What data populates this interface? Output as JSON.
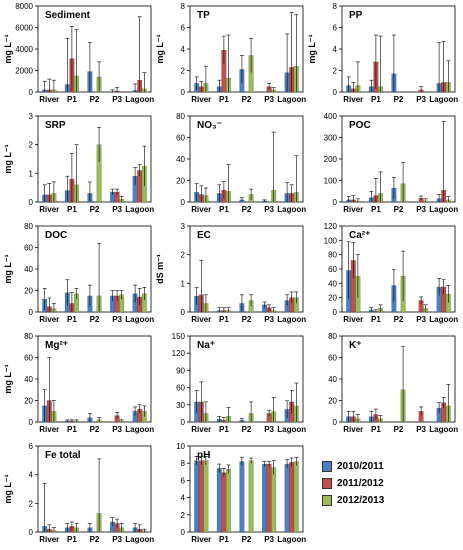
{
  "colors": {
    "s2010": "#4a7fc1",
    "s2011": "#c0504d",
    "s2012": "#9bbb59"
  },
  "legend": {
    "items": [
      "2010/2011",
      "2011/2012",
      "2012/2013"
    ]
  },
  "chart_data": [
    {
      "type": "bar",
      "title": "Sediment",
      "ylabel": "mg L⁻¹",
      "ylim": [
        0,
        8000
      ],
      "yticks": [
        0,
        2000,
        4000,
        6000,
        8000
      ],
      "categories": [
        "River",
        "P1",
        "P2",
        "P3",
        "Lagoon"
      ],
      "series": [
        {
          "name": "2010/2011",
          "values": [
            200,
            700,
            1900,
            50,
            150
          ],
          "err": [
            800,
            4300,
            2700,
            150,
            600
          ]
        },
        {
          "name": "2011/2012",
          "values": [
            200,
            3100,
            0,
            100,
            1100
          ],
          "err": [
            1000,
            3000,
            0,
            300,
            5900
          ]
        },
        {
          "name": "2012/2013",
          "values": [
            200,
            1500,
            1400,
            0,
            300
          ],
          "err": [
            900,
            4300,
            1400,
            0,
            1500
          ]
        }
      ]
    },
    {
      "type": "bar",
      "title": "TP",
      "ylabel": "mg L⁻¹",
      "ylim": [
        0,
        8
      ],
      "yticks": [
        0,
        2,
        4,
        6,
        8
      ],
      "categories": [
        "River",
        "P1",
        "P2",
        "P3",
        "Lagoon"
      ],
      "series": [
        {
          "name": "2010/2011",
          "values": [
            0.8,
            0.5,
            2.1,
            0,
            1.8
          ],
          "err": [
            0.6,
            0.6,
            1.3,
            0,
            3.6
          ]
        },
        {
          "name": "2011/2012",
          "values": [
            0.5,
            3.9,
            0,
            0.5,
            2.3
          ],
          "err": [
            0.5,
            1.3,
            0,
            0.3,
            5.1
          ]
        },
        {
          "name": "2012/2013",
          "values": [
            0.8,
            1.3,
            3.4,
            0.2,
            2.4
          ],
          "err": [
            1.6,
            4.0,
            1.6,
            0.2,
            4.8
          ]
        }
      ]
    },
    {
      "type": "bar",
      "title": "PP",
      "ylabel": "mg L⁻¹",
      "ylim": [
        0,
        8
      ],
      "yticks": [
        0,
        2,
        4,
        6,
        8
      ],
      "categories": [
        "River",
        "P1",
        "P2",
        "P3",
        "Lagoon"
      ],
      "series": [
        {
          "name": "2010/2011",
          "values": [
            0.6,
            0.5,
            1.7,
            0,
            0.8
          ],
          "err": [
            0.8,
            0.6,
            3.6,
            0,
            3.8
          ]
        },
        {
          "name": "2011/2012",
          "values": [
            0.3,
            2.8,
            0,
            0.2,
            0.9
          ],
          "err": [
            0.6,
            2.5,
            0,
            0.3,
            3.8
          ]
        },
        {
          "name": "2012/2013",
          "values": [
            0.6,
            0.5,
            0,
            0,
            0.9
          ],
          "err": [
            2.2,
            4.7,
            0,
            0,
            2.0
          ]
        }
      ]
    },
    {
      "type": "bar",
      "title": "SRP",
      "ylabel": "mg L⁻¹",
      "ylim": [
        0,
        3
      ],
      "yticks": [
        0,
        1,
        2,
        3
      ],
      "categories": [
        "River",
        "P1",
        "P2",
        "P3",
        "Lagoon"
      ],
      "series": [
        {
          "name": "2010/2011",
          "values": [
            0.25,
            0.4,
            0.3,
            0.35,
            0.9
          ],
          "err": [
            0.35,
            0.5,
            0.4,
            0.1,
            0.3
          ]
        },
        {
          "name": "2011/2012",
          "values": [
            0.25,
            0.8,
            0,
            0.35,
            1.1
          ],
          "err": [
            0.4,
            0.9,
            0,
            0.1,
            0.2
          ]
        },
        {
          "name": "2012/2013",
          "values": [
            0.3,
            0.6,
            2.0,
            0.1,
            1.25
          ],
          "err": [
            0.4,
            1.4,
            0.6,
            0.1,
            0.7
          ]
        }
      ]
    },
    {
      "type": "bar",
      "title": "NO₃⁻",
      "ylabel": "",
      "ylim": [
        0,
        80
      ],
      "yticks": [
        0,
        20,
        40,
        60,
        80
      ],
      "categories": [
        "River",
        "P1",
        "P2",
        "P3",
        "Lagoon"
      ],
      "series": [
        {
          "name": "2010/2011",
          "values": [
            9,
            8,
            2,
            1,
            8
          ],
          "err": [
            8,
            8,
            2,
            1,
            10
          ]
        },
        {
          "name": "2011/2012",
          "values": [
            7,
            11,
            0,
            0,
            8
          ],
          "err": [
            8,
            8,
            0,
            0,
            8
          ]
        },
        {
          "name": "2012/2013",
          "values": [
            6,
            10,
            7,
            11,
            9
          ],
          "err": [
            7,
            25,
            5,
            54,
            34
          ]
        }
      ]
    },
    {
      "type": "bar",
      "title": "POC",
      "ylabel": "",
      "ylim": [
        0,
        400
      ],
      "yticks": [
        0,
        100,
        200,
        300,
        400
      ],
      "categories": [
        "River",
        "P1",
        "P2",
        "P3",
        "Lagoon"
      ],
      "series": [
        {
          "name": "2010/2011",
          "values": [
            10,
            20,
            65,
            0,
            15
          ],
          "err": [
            15,
            30,
            50,
            0,
            20
          ]
        },
        {
          "name": "2011/2012",
          "values": [
            10,
            30,
            0,
            18,
            55
          ],
          "err": [
            20,
            80,
            0,
            10,
            320
          ]
        },
        {
          "name": "2012/2013",
          "values": [
            5,
            40,
            85,
            5,
            10
          ],
          "err": [
            10,
            100,
            100,
            10,
            15
          ]
        }
      ]
    },
    {
      "type": "bar",
      "title": "DOC",
      "ylabel": "mg L⁻¹",
      "ylim": [
        0,
        80
      ],
      "yticks": [
        0,
        20,
        40,
        60,
        80
      ],
      "categories": [
        "River",
        "P1",
        "P2",
        "P3",
        "Lagoon"
      ],
      "series": [
        {
          "name": "2010/2011",
          "values": [
            12,
            18,
            15,
            15,
            17
          ],
          "err": [
            10,
            12,
            10,
            5,
            8
          ]
        },
        {
          "name": "2011/2012",
          "values": [
            5,
            8,
            0,
            15,
            14
          ],
          "err": [
            8,
            10,
            0,
            5,
            8
          ]
        },
        {
          "name": "2012/2013",
          "values": [
            3,
            17,
            15,
            16,
            17
          ],
          "err": [
            5,
            5,
            49,
            4,
            6
          ]
        }
      ]
    },
    {
      "type": "bar",
      "title": "EC",
      "ylabel": "dS m⁻¹",
      "ylim": [
        0,
        3
      ],
      "yticks": [
        0,
        1,
        2,
        3
      ],
      "categories": [
        "River",
        "P1",
        "P2",
        "P3",
        "Lagoon"
      ],
      "series": [
        {
          "name": "2010/2011",
          "values": [
            0.55,
            0.05,
            0.3,
            0.25,
            0.4
          ],
          "err": [
            0.3,
            0.1,
            0.3,
            0.1,
            0.2
          ]
        },
        {
          "name": "2011/2012",
          "values": [
            0.6,
            0.05,
            0,
            0.15,
            0.5
          ],
          "err": [
            1.2,
            0.1,
            0,
            0.1,
            0.2
          ]
        },
        {
          "name": "2012/2013",
          "values": [
            0.3,
            0.05,
            0.4,
            0.05,
            0.5
          ],
          "err": [
            0.3,
            0.1,
            0.2,
            0.1,
            0.2
          ]
        }
      ]
    },
    {
      "type": "bar",
      "title": "Ca²⁺",
      "ylabel": "",
      "ylim": [
        0,
        120
      ],
      "yticks": [
        0,
        20,
        40,
        60,
        80,
        100,
        120
      ],
      "categories": [
        "River",
        "P1",
        "P2",
        "P3",
        "Lagoon"
      ],
      "series": [
        {
          "name": "2010/2011",
          "values": [
            58,
            3,
            37,
            0,
            35
          ],
          "err": [
            40,
            3,
            22,
            0,
            12
          ]
        },
        {
          "name": "2011/2012",
          "values": [
            72,
            1,
            0,
            16,
            35
          ],
          "err": [
            25,
            2,
            0,
            5,
            10
          ]
        },
        {
          "name": "2012/2013",
          "values": [
            50,
            5,
            50,
            5,
            25
          ],
          "err": [
            30,
            5,
            35,
            5,
            12
          ]
        }
      ]
    },
    {
      "type": "bar",
      "title": "Mg²⁺",
      "ylabel": "mg L⁻¹",
      "ylim": [
        0,
        80
      ],
      "yticks": [
        0,
        20,
        40,
        60,
        80
      ],
      "categories": [
        "River",
        "P1",
        "P2",
        "P3",
        "Lagoon"
      ],
      "series": [
        {
          "name": "2010/2011",
          "values": [
            15,
            1,
            4,
            0,
            10
          ],
          "err": [
            15,
            1,
            4,
            0,
            4
          ]
        },
        {
          "name": "2011/2012",
          "values": [
            20,
            1,
            0,
            6,
            12
          ],
          "err": [
            40,
            1,
            0,
            3,
            4
          ]
        },
        {
          "name": "2012/2013",
          "values": [
            10,
            1,
            2,
            1,
            10
          ],
          "err": [
            10,
            1,
            2,
            1,
            5
          ]
        }
      ]
    },
    {
      "type": "bar",
      "title": "Na⁺",
      "ylabel": "",
      "ylim": [
        0,
        150
      ],
      "yticks": [
        0,
        30,
        60,
        90,
        120,
        150
      ],
      "categories": [
        "River",
        "P1",
        "P2",
        "P3",
        "Lagoon"
      ],
      "series": [
        {
          "name": "2010/2011",
          "values": [
            35,
            5,
            3,
            0,
            22
          ],
          "err": [
            20,
            5,
            3,
            0,
            15
          ]
        },
        {
          "name": "2011/2012",
          "values": [
            35,
            3,
            0,
            15,
            35
          ],
          "err": [
            35,
            5,
            0,
            5,
            20
          ]
        },
        {
          "name": "2012/2013",
          "values": [
            15,
            10,
            15,
            18,
            28
          ],
          "err": [
            20,
            15,
            20,
            25,
            40
          ]
        }
      ]
    },
    {
      "type": "bar",
      "title": "K⁺",
      "ylabel": "",
      "ylim": [
        0,
        80
      ],
      "yticks": [
        0,
        20,
        40,
        60,
        80
      ],
      "categories": [
        "River",
        "P1",
        "P2",
        "P3",
        "Lagoon"
      ],
      "series": [
        {
          "name": "2010/2011",
          "values": [
            5,
            5,
            0,
            0,
            13
          ],
          "err": [
            5,
            5,
            0,
            0,
            5
          ]
        },
        {
          "name": "2011/2012",
          "values": [
            5,
            7,
            0,
            10,
            18
          ],
          "err": [
            5,
            5,
            0,
            4,
            5
          ]
        },
        {
          "name": "2012/2013",
          "values": [
            3,
            3,
            30,
            0,
            15
          ],
          "err": [
            4,
            3,
            40,
            0,
            20
          ]
        }
      ]
    },
    {
      "type": "bar",
      "title": "Fe total",
      "ylabel": "mg L⁻¹",
      "ylim": [
        0,
        6
      ],
      "yticks": [
        0,
        2,
        4,
        6
      ],
      "categories": [
        "River",
        "P1",
        "P2",
        "P3",
        "Lagoon"
      ],
      "series": [
        {
          "name": "2010/2011",
          "values": [
            0.4,
            0.3,
            0.3,
            0.7,
            0.3
          ],
          "err": [
            3.0,
            0.3,
            0.3,
            0.3,
            0.3
          ]
        },
        {
          "name": "2011/2012",
          "values": [
            0.2,
            0.4,
            0,
            0.6,
            0.2
          ],
          "err": [
            0.3,
            0.3,
            0,
            0.3,
            0.3
          ]
        },
        {
          "name": "2012/2013",
          "values": [
            0.1,
            0.3,
            1.3,
            0.3,
            0.1
          ],
          "err": [
            0.2,
            0.3,
            3.8,
            0.3,
            0.1
          ]
        }
      ]
    },
    {
      "type": "bar",
      "title": "pH",
      "ylabel": "",
      "ylim": [
        0,
        10
      ],
      "yticks": [
        0,
        2,
        4,
        6,
        8,
        10
      ],
      "categories": [
        "River",
        "P1",
        "P2",
        "P3",
        "Lagoon"
      ],
      "series": [
        {
          "name": "2010/2011",
          "values": [
            8.3,
            7.4,
            8.2,
            7.9,
            7.9
          ],
          "err": [
            0.5,
            0.5,
            0.5,
            0.3,
            0.5
          ]
        },
        {
          "name": "2011/2012",
          "values": [
            8.3,
            6.9,
            0,
            7.9,
            8.1
          ],
          "err": [
            0.5,
            0.5,
            0,
            0.3,
            0.5
          ]
        },
        {
          "name": "2012/2013",
          "values": [
            8.3,
            7.3,
            8.3,
            7.5,
            8.2
          ],
          "err": [
            0.5,
            0.5,
            0.3,
            0.8,
            0.5
          ]
        }
      ]
    }
  ]
}
